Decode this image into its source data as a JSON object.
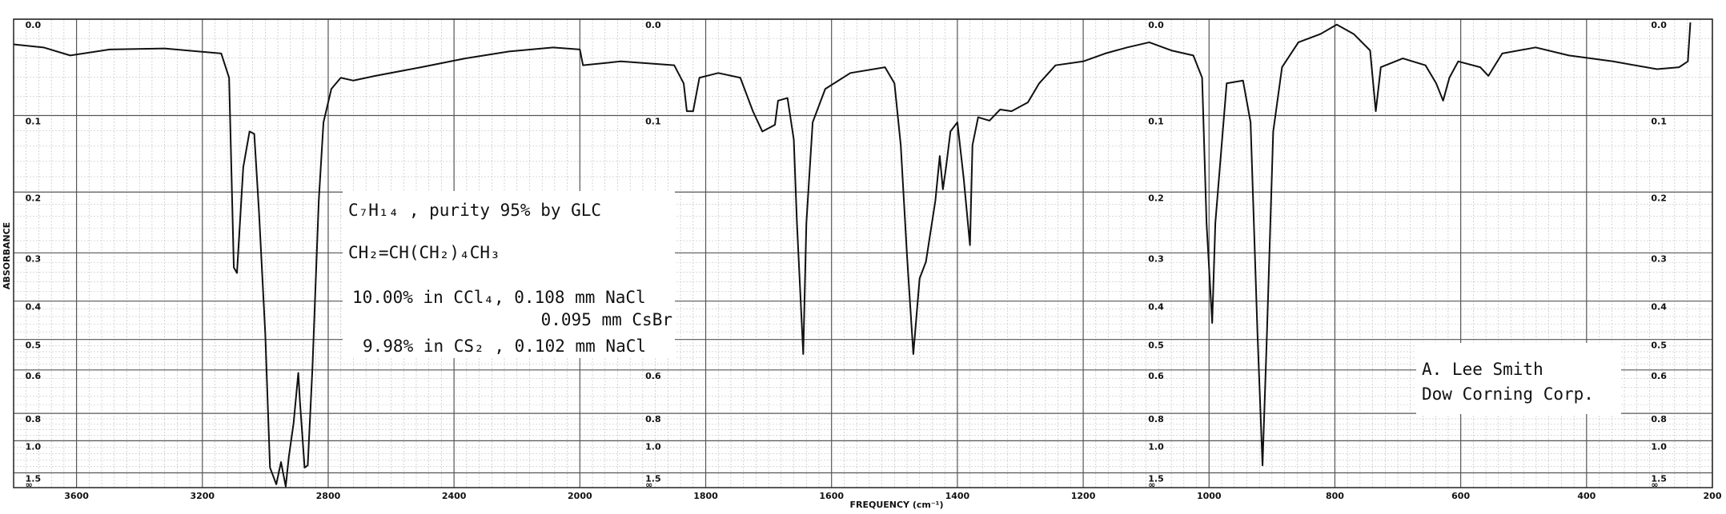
{
  "chart_data": {
    "type": "line",
    "ylabel": "ABSORBANCE",
    "xlabel": "FREQUENCY (cm⁻¹)",
    "xlim": [
      3800,
      200
    ],
    "xscale_break": 2000,
    "xticks": [
      3600,
      3200,
      2800,
      2400,
      2000,
      1800,
      1600,
      1400,
      1200,
      1000,
      800,
      600,
      400,
      200
    ],
    "yscale": "absorbance",
    "ylim": [
      0,
      "∞"
    ],
    "yticks": [
      {
        "value": 0,
        "label": "0.0"
      },
      0.1,
      0.2,
      0.3,
      0.4,
      0.5,
      0.6,
      0.8,
      {
        "value": 1,
        "label": "1.0"
      },
      1.5
    ],
    "grid": true,
    "series": [
      {
        "color": "#111111",
        "x": [
          3800,
          3705,
          3620,
          3495,
          3320,
          3140,
          3115,
          3100,
          3090,
          3070,
          3050,
          3035,
          3020,
          3000,
          2985,
          2965,
          2950,
          2935,
          2925,
          2910,
          2895,
          2890,
          2875,
          2865,
          2850,
          2830,
          2815,
          2790,
          2760,
          2720,
          2650,
          2505,
          2365,
          2225,
          2085,
          2000,
          1995,
          1935,
          1850,
          1835,
          1830,
          1820,
          1810,
          1780,
          1745,
          1725,
          1710,
          1690,
          1685,
          1670,
          1660,
          1655,
          1645,
          1640,
          1630,
          1610,
          1570,
          1515,
          1500,
          1490,
          1480,
          1470,
          1460,
          1450,
          1435,
          1428,
          1423,
          1418,
          1411,
          1400,
          1390,
          1380,
          1376,
          1367,
          1349,
          1332,
          1314,
          1288,
          1270,
          1244,
          1200,
          1165,
          1130,
          1095,
          1060,
          1025,
          1011,
          1004,
          995,
          990,
          972,
          946,
          934,
          923,
          915,
          908,
          898,
          884,
          858,
          823,
          797,
          770,
          744,
          735,
          727,
          692,
          656,
          639,
          628,
          618,
          604,
          569,
          556,
          534,
          481,
          428,
          358,
          288,
          253,
          239,
          235
        ],
        "values": [
          0.024,
          0.027,
          0.035,
          0.029,
          0.028,
          0.033,
          0.058,
          0.328,
          0.339,
          0.165,
          0.119,
          0.122,
          0.23,
          0.484,
          1.369,
          2.15,
          1.263,
          2.6,
          1.177,
          0.861,
          0.611,
          0.732,
          1.369,
          1.323,
          0.591,
          0.213,
          0.108,
          0.07,
          0.058,
          0.061,
          0.056,
          0.047,
          0.038,
          0.031,
          0.027,
          0.029,
          0.045,
          0.041,
          0.045,
          0.064,
          0.095,
          0.095,
          0.058,
          0.053,
          0.058,
          0.095,
          0.119,
          0.111,
          0.083,
          0.08,
          0.129,
          0.248,
          0.545,
          0.248,
          0.108,
          0.07,
          0.053,
          0.047,
          0.064,
          0.136,
          0.306,
          0.545,
          0.35,
          0.317,
          0.213,
          0.15,
          0.196,
          0.165,
          0.119,
          0.108,
          0.18,
          0.286,
          0.136,
          0.102,
          0.106,
          0.093,
          0.095,
          0.085,
          0.064,
          0.045,
          0.041,
          0.033,
          0.027,
          0.022,
          0.03,
          0.035,
          0.058,
          0.248,
          0.454,
          0.248,
          0.064,
          0.061,
          0.108,
          0.484,
          1.323,
          0.484,
          0.119,
          0.047,
          0.022,
          0.014,
          0.005,
          0.014,
          0.03,
          0.095,
          0.047,
          0.038,
          0.045,
          0.064,
          0.083,
          0.058,
          0.041,
          0.047,
          0.056,
          0.033,
          0.027,
          0.035,
          0.041,
          0.049,
          0.047,
          0.041,
          0.003
        ]
      }
    ],
    "sample_info": [
      "C₇H₁₄ , purity 95% by GLC",
      "CH₂=CH(CH₂)₄CH₃",
      "10.00% in CCl₄, 0.108 mm NaCl",
      "0.095 mm CsBr",
      "9.98% in CS₂ , 0.102 mm NaCl"
    ],
    "credit": [
      "A. Lee Smith",
      "Dow Corning Corp."
    ]
  }
}
